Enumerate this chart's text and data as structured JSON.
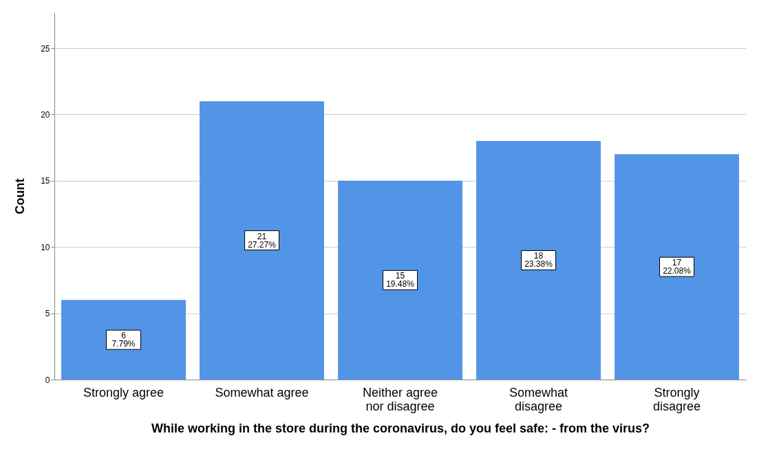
{
  "chart_data": {
    "type": "bar",
    "xlabel": "While working in the store during the coronavirus, do you feel safe: - from the virus?",
    "ylabel": "Count",
    "categories": [
      "Strongly agree",
      "Somewhat agree",
      "Neither agree nor disagree",
      "Somewhat disagree",
      "Strongly disagree"
    ],
    "values": [
      6,
      21,
      15,
      18,
      17
    ],
    "value_labels": [
      "6\n7.79%",
      "21\n27.27%",
      "15\n19.48%",
      "18\n23.38%",
      "17\n22.08%"
    ],
    "color": "#5294e6",
    "ylim": [
      0,
      27.7
    ],
    "yticks": [
      0,
      5,
      10,
      15,
      20,
      25
    ],
    "grid": "y"
  }
}
